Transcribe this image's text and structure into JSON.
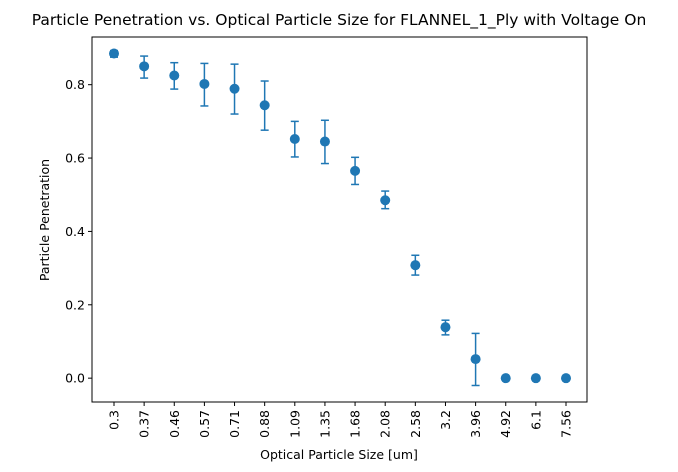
{
  "chart_data": {
    "type": "scatter",
    "title": "Particle Penetration vs. Optical Particle Size for FLANNEL_1_Ply with Voltage On",
    "xlabel": "Optical Particle Size [um]",
    "ylabel": "Particle Penetration",
    "categories": [
      "0.3",
      "0.37",
      "0.46",
      "0.57",
      "0.71",
      "0.88",
      "1.09",
      "1.35",
      "1.68",
      "2.08",
      "2.58",
      "3.2",
      "3.96",
      "4.92",
      "6.1",
      "7.56"
    ],
    "series": [
      {
        "values": [
          0.885,
          0.85,
          0.825,
          0.802,
          0.789,
          0.744,
          0.652,
          0.645,
          0.565,
          0.485,
          0.308,
          0.139,
          0.052,
          0.0,
          0.0,
          0.0
        ],
        "err_low": [
          0.875,
          0.818,
          0.788,
          0.742,
          0.72,
          0.676,
          0.603,
          0.585,
          0.528,
          0.462,
          0.281,
          0.118,
          -0.02,
          0.0,
          0.0,
          0.0
        ],
        "err_high": [
          0.893,
          0.878,
          0.86,
          0.858,
          0.856,
          0.81,
          0.7,
          0.703,
          0.602,
          0.51,
          0.335,
          0.158,
          0.122,
          0.0,
          0.0,
          0.0
        ]
      }
    ],
    "yticks": [
      0.0,
      0.2,
      0.4,
      0.6,
      0.8
    ],
    "ytick_labels": [
      "0.0",
      "0.2",
      "0.4",
      "0.6",
      "0.8"
    ],
    "ylim": [
      -0.065,
      0.93
    ],
    "grid": false,
    "color": "#1f77b4"
  }
}
